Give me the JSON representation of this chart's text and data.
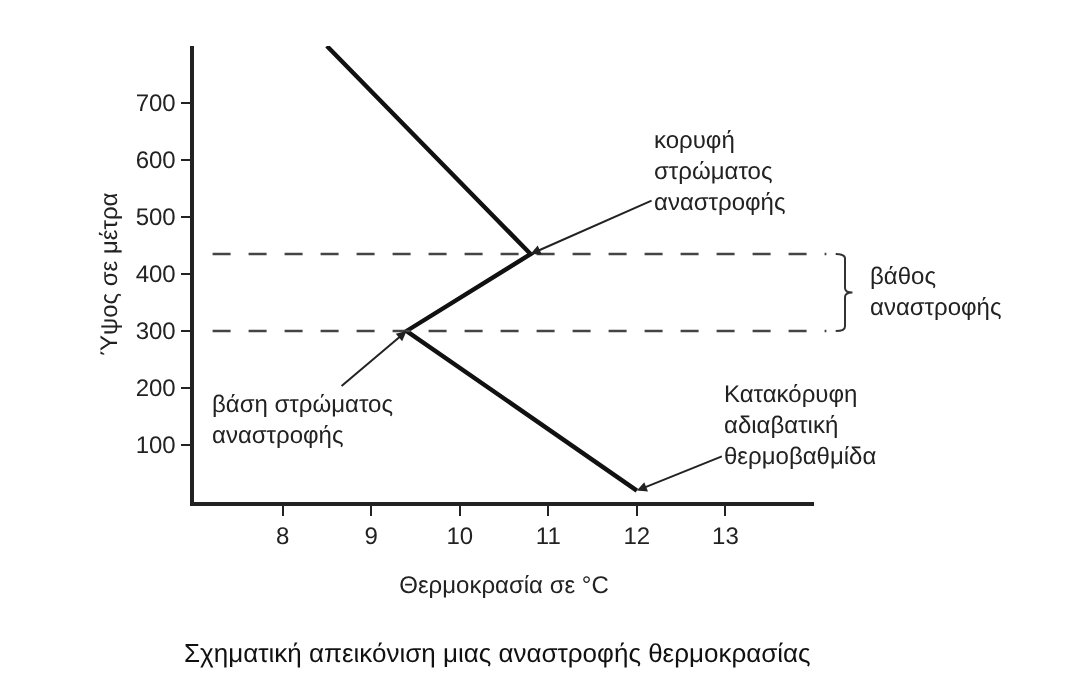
{
  "chart_data": {
    "type": "line",
    "title": "Σχηματική απεικόνιση μιας αναστροφής θερμοκρασίας",
    "xlabel": "Θερμοκρασία σε °C",
    "ylabel": "Ύψος σε μέτρα",
    "x": [
      8.5,
      10.8,
      9.4,
      12
    ],
    "series": [
      {
        "color": "#111111",
        "values": [
          800,
          435,
          300,
          20
        ]
      }
    ],
    "xlim": [
      7,
      14
    ],
    "xticks": [
      8,
      9,
      10,
      11,
      12,
      13
    ],
    "ylim": [
      0,
      800
    ],
    "yticks": [
      100,
      200,
      300,
      400,
      500,
      600,
      700
    ],
    "ref_lines": [
      {
        "axis": "y",
        "value": 435,
        "line_style": "dashed",
        "color": "#444444"
      },
      {
        "axis": "y",
        "value": 300,
        "line_style": "dashed",
        "color": "#444444"
      }
    ],
    "annotations": [
      "βάθος\nαναστροφής",
      {
        "text": "κορυφή\nστρώματος\nαναστροφής",
        "x": 10.8,
        "y": 435
      },
      {
        "text": "βάση στρώματος\nαναστροφής",
        "x": 9.4,
        "y": 300
      },
      {
        "text": "Κατακόρυφη\nαδιαβατική\nθερμοβαθμίδα",
        "x": 12,
        "y": 20
      }
    ],
    "marker": "none",
    "line_style": "solid"
  }
}
